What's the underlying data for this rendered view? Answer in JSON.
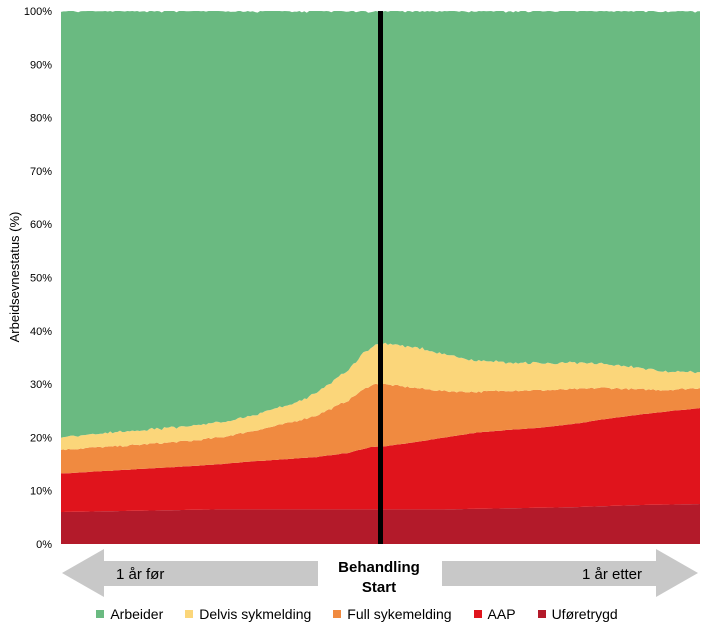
{
  "chart_data": {
    "type": "area",
    "stacked": true,
    "title": "",
    "xlabel": "",
    "ylabel": "Arbeidsevnestatus (%)",
    "ylim": [
      0,
      100
    ],
    "xlim": [
      -1,
      1
    ],
    "x_unit": "years relative to treatment start",
    "y_ticks": [
      "0%",
      "10%",
      "20%",
      "30%",
      "40%",
      "50%",
      "60%",
      "70%",
      "80%",
      "90%",
      "100%"
    ],
    "y_tick_values": [
      0,
      10,
      20,
      30,
      40,
      50,
      60,
      70,
      80,
      90,
      100
    ],
    "grid": false,
    "legend_position": "bottom",
    "x": [
      -1.0,
      -0.8,
      -0.6,
      -0.5,
      -0.4,
      -0.3,
      -0.2,
      -0.15,
      -0.1,
      -0.05,
      -0.03,
      0.0,
      0.02,
      0.1,
      0.2,
      0.3,
      0.4,
      0.5,
      0.6,
      0.7,
      0.8,
      0.9,
      1.0
    ],
    "series": [
      {
        "name": "Uføretrygd",
        "color": "#b31a2a",
        "values": [
          6.0,
          6.2,
          6.4,
          6.5,
          6.5,
          6.5,
          6.5,
          6.5,
          6.5,
          6.5,
          6.5,
          6.5,
          6.5,
          6.5,
          6.5,
          6.6,
          6.7,
          6.8,
          6.9,
          7.1,
          7.3,
          7.4,
          7.5
        ]
      },
      {
        "name": "AAP",
        "color": "#e0141c",
        "values": [
          7.2,
          7.7,
          8.2,
          8.5,
          9.0,
          9.4,
          9.8,
          10.2,
          10.6,
          11.4,
          11.7,
          11.8,
          11.9,
          12.5,
          13.5,
          14.3,
          14.7,
          15.0,
          15.6,
          16.3,
          16.9,
          17.5,
          18.0
        ]
      },
      {
        "name": "Full sykemelding",
        "color": "#f08a40",
        "values": [
          4.5,
          4.5,
          4.7,
          5.0,
          5.7,
          6.6,
          7.8,
          8.8,
          9.9,
          11.2,
          11.6,
          11.9,
          11.5,
          10.3,
          8.7,
          7.6,
          7.4,
          7.0,
          6.5,
          5.9,
          4.8,
          4.0,
          3.8
        ]
      },
      {
        "name": "Delvis sykmelding",
        "color": "#fbd67a",
        "values": [
          2.4,
          2.7,
          2.8,
          2.8,
          3.0,
          3.3,
          4.2,
          5.0,
          5.7,
          6.9,
          7.2,
          7.6,
          7.6,
          7.7,
          6.9,
          5.9,
          5.3,
          5.1,
          4.9,
          4.5,
          4.1,
          3.5,
          3.0
        ]
      },
      {
        "name": "Arbeider",
        "color": "#6aba81",
        "values": [
          79.9,
          78.9,
          77.9,
          77.2,
          75.8,
          74.2,
          71.7,
          69.5,
          67.3,
          64.0,
          63.0,
          62.2,
          62.5,
          63.0,
          64.4,
          65.6,
          65.9,
          66.1,
          66.1,
          66.2,
          66.9,
          67.6,
          67.7
        ]
      }
    ],
    "annotations": {
      "vertical_line_at": 0,
      "vertical_line_color": "#000000",
      "left_arrow_label": "1 år før",
      "right_arrow_label": "1 år etter",
      "center_label_line1": "Behandling",
      "center_label_line2": "Start",
      "arrow_color": "#c8c8c8"
    }
  },
  "legend": [
    {
      "label": "Arbeider",
      "color": "#6aba81"
    },
    {
      "label": "Delvis sykmelding",
      "color": "#fbd67a"
    },
    {
      "label": "Full sykemelding",
      "color": "#f08a40"
    },
    {
      "label": "AAP",
      "color": "#e0141c"
    },
    {
      "label": "Uføretrygd",
      "color": "#b31a2a"
    }
  ]
}
